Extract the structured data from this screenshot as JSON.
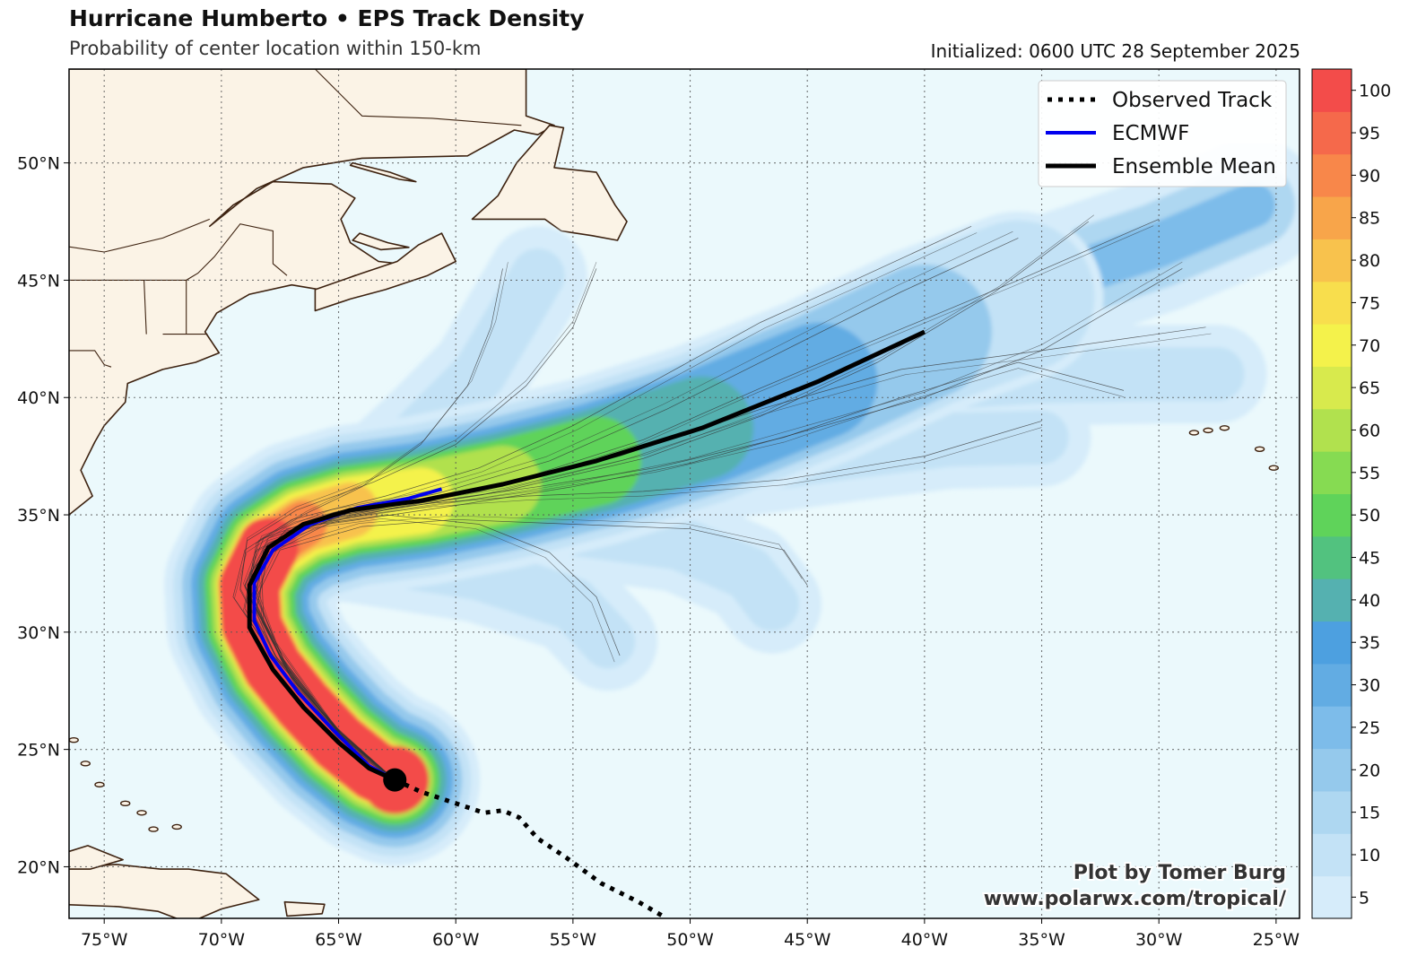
{
  "header": {
    "title": "Hurricane Humberto • EPS Track Density",
    "subtitle": "Probability of center location within 150-km",
    "initialized": "Initialized: 0600 UTC 28 September 2025"
  },
  "map": {
    "lon_range": [
      -76.5,
      -24.0
    ],
    "lat_range": [
      17.8,
      54.0
    ],
    "lon_ticks": [
      "75°W",
      "70°W",
      "65°W",
      "60°W",
      "55°W",
      "50°W",
      "45°W",
      "40°W",
      "35°W",
      "30°W",
      "25°W"
    ],
    "lat_ticks": [
      "20°N",
      "25°N",
      "30°N",
      "35°N",
      "40°N",
      "45°N",
      "50°N"
    ],
    "ocean_color": "#ebf9fc",
    "land_color": "#fbf3e6",
    "coast_color": "#3d2210",
    "grid_style": "dotted"
  },
  "legend": {
    "placement": "top-right",
    "items": [
      {
        "label": "Observed Track",
        "style": "dotted",
        "color": "#000000"
      },
      {
        "label": "ECMWF",
        "style": "solid",
        "color": "#0000ee"
      },
      {
        "label": "Ensemble Mean",
        "style": "solid",
        "color": "#000000"
      }
    ]
  },
  "colorbar": {
    "labels": [
      "5",
      "10",
      "15",
      "20",
      "25",
      "30",
      "35",
      "40",
      "45",
      "50",
      "55",
      "60",
      "65",
      "70",
      "75",
      "80",
      "85",
      "90",
      "95",
      "100"
    ],
    "colors": [
      "#d6ecfa",
      "#c3e2f6",
      "#aed7f1",
      "#95c9ec",
      "#7dbcea",
      "#62ace3",
      "#4da0e0",
      "#55b1b0",
      "#52c27f",
      "#5fd35a",
      "#86db52",
      "#b1e14e",
      "#d8ea4d",
      "#f4f24b",
      "#f8de4d",
      "#f8c24d",
      "#f8a54a",
      "#f8874a",
      "#f5694b",
      "#f34c4a"
    ]
  },
  "tracks": {
    "storm_position": [
      -62.6,
      23.7
    ],
    "observed": [
      [
        -62.6,
        23.7
      ],
      [
        -61.5,
        23.2
      ],
      [
        -60,
        22.7
      ],
      [
        -58.8,
        22.3
      ],
      [
        -58,
        22.4
      ],
      [
        -57.3,
        22.1
      ],
      [
        -56.5,
        21.2
      ],
      [
        -55.3,
        20.4
      ],
      [
        -53.8,
        19.3
      ],
      [
        -52.2,
        18.5
      ],
      [
        -51,
        17.8
      ]
    ],
    "ensemble_mean": [
      [
        -62.6,
        23.7
      ],
      [
        -63.7,
        24.2
      ],
      [
        -65,
        25.3
      ],
      [
        -66.5,
        26.8
      ],
      [
        -67.8,
        28.4
      ],
      [
        -68.8,
        30.2
      ],
      [
        -68.8,
        32.0
      ],
      [
        -68.0,
        33.6
      ],
      [
        -66.5,
        34.6
      ],
      [
        -64.5,
        35.2
      ],
      [
        -61.5,
        35.6
      ],
      [
        -58,
        36.3
      ],
      [
        -54,
        37.3
      ],
      [
        -49.5,
        38.7
      ],
      [
        -44.5,
        40.7
      ],
      [
        -40.0,
        42.8
      ]
    ],
    "ecmwf": [
      [
        -62.6,
        23.7
      ],
      [
        -63.7,
        24.3
      ],
      [
        -65.2,
        25.8
      ],
      [
        -66.7,
        27.4
      ],
      [
        -67.9,
        29.0
      ],
      [
        -68.6,
        30.5
      ],
      [
        -68.6,
        32.1
      ],
      [
        -67.8,
        33.5
      ],
      [
        -66.2,
        34.6
      ],
      [
        -64.2,
        35.3
      ],
      [
        -62,
        35.7
      ],
      [
        -60.6,
        36.1
      ]
    ],
    "members": [
      [
        [
          -62.6,
          23.7
        ],
        [
          -65,
          25.5
        ],
        [
          -67.5,
          28.5
        ],
        [
          -69,
          31
        ],
        [
          -68.5,
          33.5
        ],
        [
          -66,
          34.8
        ],
        [
          -62,
          35.5
        ],
        [
          -57,
          36.6
        ],
        [
          -52,
          38.2
        ],
        [
          -47,
          40.4
        ],
        [
          -42,
          42.5
        ],
        [
          -36,
          45
        ],
        [
          -30,
          47.6
        ]
      ],
      [
        [
          -62.6,
          23.7
        ],
        [
          -64.5,
          25
        ],
        [
          -67,
          28
        ],
        [
          -68.5,
          31
        ],
        [
          -68,
          33.3
        ],
        [
          -65.5,
          34.6
        ],
        [
          -60,
          35.4
        ],
        [
          -55,
          36.2
        ],
        [
          -50,
          37.2
        ],
        [
          -45,
          38.6
        ],
        [
          -40,
          40
        ],
        [
          -35,
          42
        ],
        [
          -29,
          45.5
        ]
      ],
      [
        [
          -62.6,
          23.7
        ],
        [
          -65,
          25.8
        ],
        [
          -67.8,
          29
        ],
        [
          -69.5,
          31.5
        ],
        [
          -69,
          33.5
        ],
        [
          -67,
          34.8
        ],
        [
          -63,
          35.8
        ],
        [
          -59,
          37
        ],
        [
          -55,
          38.8
        ],
        [
          -51,
          41
        ],
        [
          -47,
          43.2
        ],
        [
          -43,
          45
        ],
        [
          -38,
          47.3
        ]
      ],
      [
        [
          -62.6,
          23.7
        ],
        [
          -64.8,
          25.6
        ],
        [
          -67.2,
          28.5
        ],
        [
          -68.5,
          31.5
        ],
        [
          -67.5,
          33.5
        ],
        [
          -64,
          34.5
        ],
        [
          -60,
          34.8
        ],
        [
          -55,
          34.6
        ],
        [
          -50,
          34.4
        ],
        [
          -46,
          33.5
        ],
        [
          -45,
          32
        ]
      ],
      [
        [
          -62.6,
          23.7
        ],
        [
          -65,
          25.8
        ],
        [
          -67.5,
          29
        ],
        [
          -69,
          32
        ],
        [
          -68,
          34
        ],
        [
          -65,
          35
        ],
        [
          -61,
          35.5
        ],
        [
          -57,
          35.8
        ],
        [
          -52,
          36
        ],
        [
          -46,
          36.5
        ],
        [
          -40,
          37.5
        ],
        [
          -35,
          39
        ]
      ],
      [
        [
          -62.6,
          23.7
        ],
        [
          -65.2,
          26
        ],
        [
          -67.7,
          29.5
        ],
        [
          -68.8,
          32.5
        ],
        [
          -67.3,
          34.3
        ],
        [
          -63,
          35.2
        ],
        [
          -58,
          36
        ],
        [
          -52,
          37.4
        ],
        [
          -47,
          39.2
        ],
        [
          -42,
          41.5
        ],
        [
          -37,
          44.5
        ],
        [
          -33,
          47.5
        ]
      ],
      [
        [
          -62.6,
          23.7
        ],
        [
          -64.5,
          25.2
        ],
        [
          -66.8,
          27.8
        ],
        [
          -68.2,
          30.5
        ],
        [
          -68.3,
          33
        ],
        [
          -66.5,
          34.5
        ],
        [
          -63,
          35
        ],
        [
          -59,
          34.6
        ],
        [
          -56,
          33.4
        ],
        [
          -54,
          31.5
        ],
        [
          -53,
          29
        ]
      ],
      [
        [
          -62.6,
          23.7
        ],
        [
          -65,
          25.7
        ],
        [
          -67.6,
          28.8
        ],
        [
          -69.2,
          31.8
        ],
        [
          -68.9,
          33.9
        ],
        [
          -66.8,
          35.2
        ],
        [
          -63.5,
          36.4
        ],
        [
          -60,
          38
        ],
        [
          -57,
          40.5
        ],
        [
          -55,
          43
        ],
        [
          -54,
          45.5
        ]
      ],
      [
        [
          -62.6,
          23.7
        ],
        [
          -64.9,
          25.6
        ],
        [
          -67.4,
          28.7
        ],
        [
          -68.7,
          31.6
        ],
        [
          -68,
          33.8
        ],
        [
          -64.5,
          35.1
        ],
        [
          -59,
          36
        ],
        [
          -53,
          37.5
        ],
        [
          -47,
          39.5
        ],
        [
          -41,
          41.2
        ],
        [
          -35,
          42
        ],
        [
          -28,
          43
        ]
      ],
      [
        [
          -62.6,
          23.7
        ],
        [
          -65.1,
          25.9
        ],
        [
          -67.7,
          29
        ],
        [
          -69,
          32
        ],
        [
          -68.2,
          34
        ],
        [
          -65.2,
          35.1
        ],
        [
          -60.8,
          35.9
        ],
        [
          -56,
          37.3
        ],
        [
          -51,
          39.5
        ],
        [
          -46,
          42
        ],
        [
          -41,
          44.5
        ],
        [
          -36,
          46.8
        ]
      ],
      [
        [
          -62.6,
          23.7
        ],
        [
          -64.7,
          25.4
        ],
        [
          -67.1,
          28.2
        ],
        [
          -68.6,
          31.2
        ],
        [
          -68.2,
          33.5
        ],
        [
          -65.8,
          34.8
        ],
        [
          -61.5,
          35.5
        ],
        [
          -56.5,
          36.2
        ],
        [
          -51.5,
          37
        ],
        [
          -46,
          38.3
        ],
        [
          -41,
          40
        ],
        [
          -36,
          41.5
        ],
        [
          -31.5,
          40.3
        ]
      ],
      [
        [
          -62.6,
          23.7
        ],
        [
          -65,
          25.7
        ],
        [
          -67.4,
          28.8
        ],
        [
          -68.9,
          31.7
        ],
        [
          -68.5,
          33.8
        ],
        [
          -66.5,
          35
        ],
        [
          -64,
          36.2
        ],
        [
          -61.5,
          38
        ],
        [
          -59.5,
          40.5
        ],
        [
          -58.5,
          43
        ],
        [
          -58,
          45.5
        ]
      ]
    ],
    "member_color": "#333333"
  },
  "density": {
    "core": [
      [
        -62.6,
        23.7
      ],
      [
        -63.5,
        24.1
      ],
      [
        -65,
        25.3
      ],
      [
        -66.5,
        26.9
      ],
      [
        -67.8,
        28.5
      ],
      [
        -68.7,
        30.3
      ],
      [
        -68.8,
        32
      ],
      [
        -68,
        33.6
      ],
      [
        -66.5,
        34.6
      ],
      [
        -64.5,
        35.2
      ],
      [
        -61.5,
        35.6
      ],
      [
        -58,
        36.3
      ],
      [
        -54,
        37.3
      ],
      [
        -49.5,
        38.7
      ],
      [
        -44.5,
        40.7
      ],
      [
        -40,
        42.8
      ],
      [
        -36,
        44.3
      ]
    ],
    "tail": [
      [
        -49.5,
        38.7
      ],
      [
        -44.5,
        40.7
      ],
      [
        -40,
        42.8
      ],
      [
        -35,
        44.8
      ],
      [
        -30,
        46.5
      ],
      [
        -26,
        48.2
      ]
    ],
    "lobes": [
      [
        [
          -64.5,
          35.2
        ],
        [
          -60,
          34.8
        ],
        [
          -55,
          34.4
        ],
        [
          -50.5,
          33.8
        ],
        [
          -47.5,
          32.5
        ],
        [
          -46.5,
          31.2
        ]
      ],
      [
        [
          -67.5,
          33.8
        ],
        [
          -64,
          33.3
        ],
        [
          -59,
          32.5
        ],
        [
          -55,
          31.2
        ],
        [
          -53.5,
          29.6
        ]
      ],
      [
        [
          -64,
          36.2
        ],
        [
          -61.5,
          38.5
        ],
        [
          -59,
          41
        ],
        [
          -57.5,
          43.5
        ],
        [
          -56.5,
          45.2
        ]
      ],
      [
        [
          -44,
          40
        ],
        [
          -40,
          40.6
        ],
        [
          -35,
          40.9
        ],
        [
          -30,
          41
        ],
        [
          -27.5,
          41
        ]
      ],
      [
        [
          -48,
          37
        ],
        [
          -43,
          37.7
        ],
        [
          -39,
          38.2
        ],
        [
          -35,
          38.3
        ]
      ]
    ]
  },
  "credit": {
    "line1": "Plot by Tomer Burg",
    "line2": "www.polarwx.com/tropical/"
  }
}
